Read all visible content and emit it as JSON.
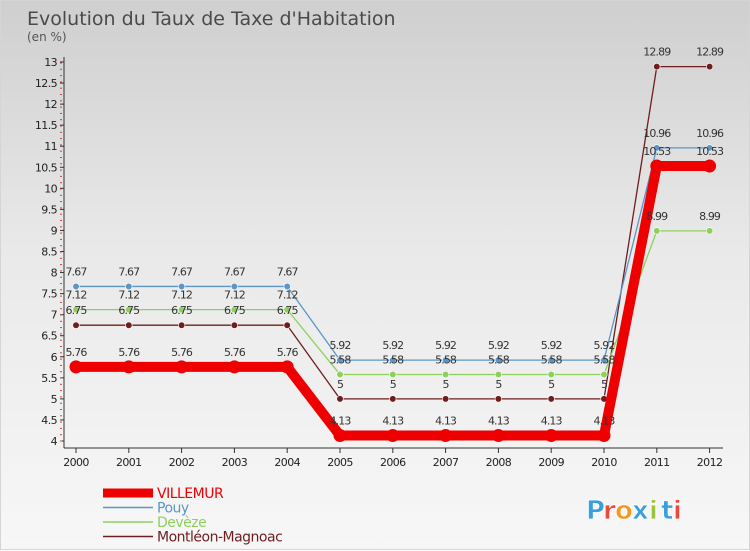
{
  "chart_data": {
    "type": "line",
    "title": "Evolution du Taux de Taxe d'Habitation",
    "subtitle": "(en %)",
    "x": [
      "2000",
      "2001",
      "2002",
      "2003",
      "2004",
      "2005",
      "2006",
      "2007",
      "2008",
      "2009",
      "2010",
      "2011",
      "2012"
    ],
    "ylim": [
      4,
      13
    ],
    "yticks": [
      "4",
      "4.5",
      "5",
      "5.5",
      "6",
      "6.5",
      "7",
      "7.5",
      "8",
      "8.5",
      "9",
      "9.5",
      "10",
      "10.5",
      "11",
      "11.5",
      "12",
      "12.5",
      "13"
    ],
    "grid": false,
    "legend_position": "bottom-left",
    "series": [
      {
        "name": "Montléon-Magnoac",
        "color": "#6e1e1e",
        "values": [
          6.75,
          6.75,
          6.75,
          6.75,
          6.75,
          5,
          5,
          5,
          5,
          5,
          5,
          12.89,
          12.89
        ],
        "labels": [
          "6.75",
          "6.75",
          "6.75",
          "6.75",
          "6.75",
          "5",
          "5",
          "5",
          "5",
          "5",
          "5",
          "12.89",
          "12.89"
        ]
      },
      {
        "name": "Devèze",
        "color": "#8ed05c",
        "values": [
          7.12,
          7.12,
          7.12,
          7.12,
          7.12,
          5.58,
          5.58,
          5.58,
          5.58,
          5.58,
          5.58,
          8.99,
          8.99
        ],
        "labels": [
          "7.12",
          "7.12",
          "7.12",
          "7.12",
          "7.12",
          "5.58",
          "5.58",
          "5.58",
          "5.58",
          "5.58",
          "5.58",
          "8.99",
          "8.99"
        ]
      },
      {
        "name": "Pouy",
        "color": "#5b96c8",
        "values": [
          7.67,
          7.67,
          7.67,
          7.67,
          7.67,
          5.92,
          5.92,
          5.92,
          5.92,
          5.92,
          5.92,
          10.96,
          10.96
        ],
        "labels": [
          "7.67",
          "7.67",
          "7.67",
          "7.67",
          "7.67",
          "5.92",
          "5.92",
          "5.92",
          "5.92",
          "5.92",
          "5.92",
          "10.96",
          "10.96"
        ]
      },
      {
        "name": "VILLEMUR",
        "color": "#ee0000",
        "values": [
          5.76,
          5.76,
          5.76,
          5.76,
          5.76,
          4.13,
          4.13,
          4.13,
          4.13,
          4.13,
          4.13,
          10.53,
          10.53
        ],
        "labels": [
          "5.76",
          "5.76",
          "5.76",
          "5.76",
          "5.76",
          "4.13",
          "4.13",
          "4.13",
          "4.13",
          "4.13",
          "4.13",
          "10.53",
          "10.53"
        ]
      }
    ]
  },
  "legend": [
    "VILLEMUR",
    "Pouy",
    "Devèze",
    "Montléon-Magnoac"
  ],
  "brand": {
    "letters": [
      "P",
      "r",
      "o",
      "x",
      "i",
      "t",
      "i"
    ],
    "colors": [
      "#3aa0dc",
      "#e84c3d",
      "#f29a1f",
      "#3aa0dc",
      "#9bc43a",
      "#3aa0dc",
      "#e84c3d"
    ]
  }
}
